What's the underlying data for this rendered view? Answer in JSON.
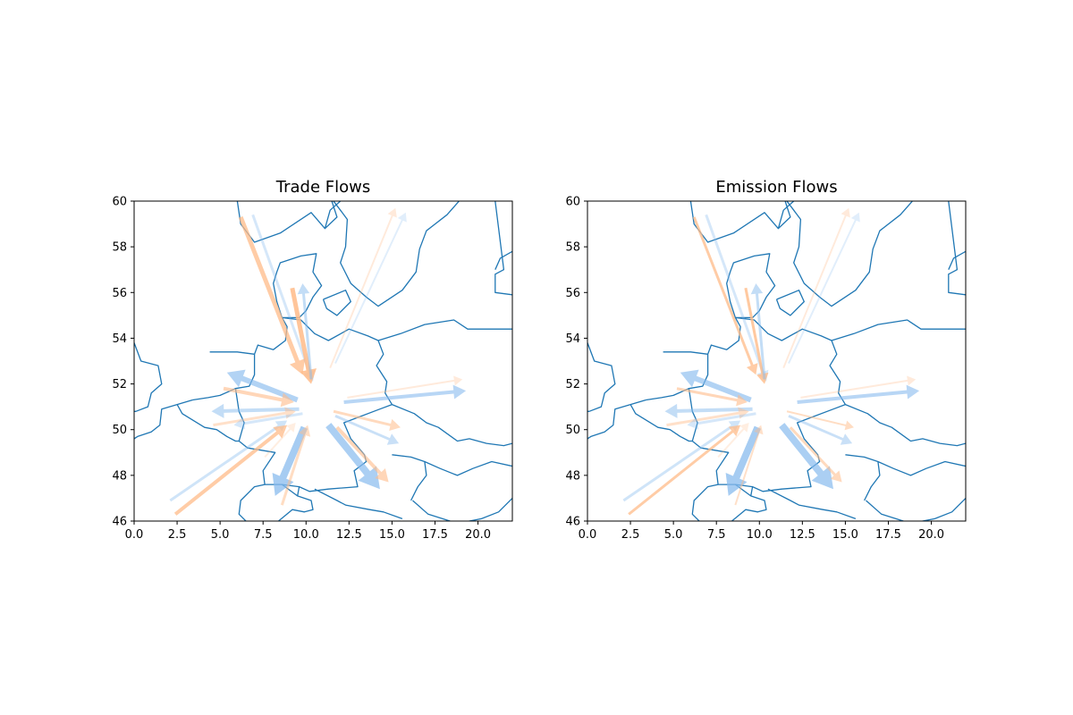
{
  "figure": {
    "colors": {
      "border": "#1f77b4",
      "export": "#ffbb88",
      "import": "#88bbee"
    },
    "panels": [
      {
        "title": "Trade Flows"
      },
      {
        "title": "Emission Flows"
      }
    ]
  },
  "chart_data": [
    {
      "type": "map-flows",
      "title": "Trade Flows",
      "xlim": [
        0,
        22
      ],
      "ylim": [
        46,
        60
      ],
      "x_ticks": [
        "0.0",
        "2.5",
        "5.0",
        "7.5",
        "10.0",
        "12.5",
        "15.0",
        "17.5",
        "20.0"
      ],
      "y_ticks": [
        "46",
        "48",
        "50",
        "52",
        "54",
        "56",
        "58",
        "60"
      ],
      "grid": false,
      "center": [
        10.5,
        51.0
      ],
      "flows": [
        {
          "from": [
            6.2,
            59.3
          ],
          "to": [
            9.8,
            52.4
          ],
          "color": "#ffbb88",
          "alpha": 0.75,
          "width": 5
        },
        {
          "from": [
            6.9,
            59.4
          ],
          "to": [
            10.4,
            52.1
          ],
          "color": "#88bbee",
          "alpha": 0.35,
          "width": 3
        },
        {
          "from": [
            9.2,
            56.2
          ],
          "to": [
            10.3,
            52.0
          ],
          "color": "#ffbb88",
          "alpha": 0.85,
          "width": 5
        },
        {
          "from": [
            10.3,
            52.2
          ],
          "to": [
            9.8,
            56.4
          ],
          "color": "#88bbee",
          "alpha": 0.5,
          "width": 3
        },
        {
          "from": [
            11.4,
            52.7
          ],
          "to": [
            15.2,
            59.7
          ],
          "color": "#ffbb88",
          "alpha": 0.3,
          "width": 2
        },
        {
          "from": [
            11.7,
            52.9
          ],
          "to": [
            15.8,
            59.5
          ],
          "color": "#88bbee",
          "alpha": 0.25,
          "width": 2
        },
        {
          "from": [
            9.5,
            51.3
          ],
          "to": [
            5.4,
            52.5
          ],
          "color": "#88bbee",
          "alpha": 0.65,
          "width": 6
        },
        {
          "from": [
            5.2,
            51.8
          ],
          "to": [
            9.3,
            51.2
          ],
          "color": "#ffbb88",
          "alpha": 0.6,
          "width": 4
        },
        {
          "from": [
            9.6,
            50.9
          ],
          "to": [
            4.5,
            50.8
          ],
          "color": "#88bbee",
          "alpha": 0.5,
          "width": 4
        },
        {
          "from": [
            4.6,
            50.2
          ],
          "to": [
            9.4,
            50.8
          ],
          "color": "#ffbb88",
          "alpha": 0.45,
          "width": 3
        },
        {
          "from": [
            9.8,
            50.7
          ],
          "to": [
            5.8,
            50.2
          ],
          "color": "#88bbee",
          "alpha": 0.35,
          "width": 3
        },
        {
          "from": [
            2.1,
            46.9
          ],
          "to": [
            8.9,
            50.4
          ],
          "color": "#88bbee",
          "alpha": 0.4,
          "width": 3
        },
        {
          "from": [
            2.4,
            46.3
          ],
          "to": [
            8.9,
            50.2
          ],
          "color": "#ffbb88",
          "alpha": 0.75,
          "width": 4
        },
        {
          "from": [
            7.6,
            48.8
          ],
          "to": [
            9.4,
            50.3
          ],
          "color": "#ffbb88",
          "alpha": 0.25,
          "width": 2
        },
        {
          "from": [
            9.9,
            50.1
          ],
          "to": [
            8.2,
            47.1
          ],
          "color": "#88bbee",
          "alpha": 0.75,
          "width": 8
        },
        {
          "from": [
            8.6,
            46.7
          ],
          "to": [
            10.1,
            50.2
          ],
          "color": "#ffbb88",
          "alpha": 0.5,
          "width": 3
        },
        {
          "from": [
            11.3,
            50.2
          ],
          "to": [
            14.3,
            47.4
          ],
          "color": "#88bbee",
          "alpha": 0.7,
          "width": 8
        },
        {
          "from": [
            11.8,
            50.1
          ],
          "to": [
            14.8,
            47.7
          ],
          "color": "#ffbb88",
          "alpha": 0.6,
          "width": 4
        },
        {
          "from": [
            11.6,
            50.8
          ],
          "to": [
            15.5,
            50.1
          ],
          "color": "#ffbb88",
          "alpha": 0.55,
          "width": 3
        },
        {
          "from": [
            11.7,
            50.6
          ],
          "to": [
            15.4,
            49.4
          ],
          "color": "#88bbee",
          "alpha": 0.45,
          "width": 3
        },
        {
          "from": [
            12.2,
            51.2
          ],
          "to": [
            19.3,
            51.7
          ],
          "color": "#88bbee",
          "alpha": 0.6,
          "width": 4
        },
        {
          "from": [
            12.4,
            51.4
          ],
          "to": [
            19.1,
            52.2
          ],
          "color": "#ffbb88",
          "alpha": 0.3,
          "width": 2
        }
      ]
    },
    {
      "type": "map-flows",
      "title": "Emission Flows",
      "xlim": [
        0,
        22
      ],
      "ylim": [
        46,
        60
      ],
      "x_ticks": [
        "0.0",
        "2.5",
        "5.0",
        "7.5",
        "10.0",
        "12.5",
        "15.0",
        "17.5",
        "20.0"
      ],
      "y_ticks": [
        "46",
        "48",
        "50",
        "52",
        "54",
        "56",
        "58",
        "60"
      ],
      "grid": false,
      "center": [
        10.5,
        51.0
      ],
      "flows": [
        {
          "from": [
            6.2,
            59.3
          ],
          "to": [
            9.8,
            52.4
          ],
          "color": "#ffbb88",
          "alpha": 0.75,
          "width": 3
        },
        {
          "from": [
            6.9,
            59.4
          ],
          "to": [
            10.4,
            52.1
          ],
          "color": "#88bbee",
          "alpha": 0.35,
          "width": 3
        },
        {
          "from": [
            9.2,
            56.2
          ],
          "to": [
            10.3,
            52.0
          ],
          "color": "#ffbb88",
          "alpha": 0.8,
          "width": 3
        },
        {
          "from": [
            10.3,
            52.2
          ],
          "to": [
            9.8,
            56.4
          ],
          "color": "#88bbee",
          "alpha": 0.5,
          "width": 3
        },
        {
          "from": [
            11.4,
            52.7
          ],
          "to": [
            15.2,
            59.7
          ],
          "color": "#ffbb88",
          "alpha": 0.3,
          "width": 2
        },
        {
          "from": [
            11.7,
            52.9
          ],
          "to": [
            15.8,
            59.5
          ],
          "color": "#88bbee",
          "alpha": 0.25,
          "width": 2
        },
        {
          "from": [
            9.5,
            51.3
          ],
          "to": [
            5.4,
            52.5
          ],
          "color": "#88bbee",
          "alpha": 0.65,
          "width": 6
        },
        {
          "from": [
            5.2,
            51.8
          ],
          "to": [
            9.3,
            51.2
          ],
          "color": "#ffbb88",
          "alpha": 0.6,
          "width": 3
        },
        {
          "from": [
            9.6,
            50.9
          ],
          "to": [
            4.5,
            50.8
          ],
          "color": "#88bbee",
          "alpha": 0.5,
          "width": 4
        },
        {
          "from": [
            4.6,
            50.2
          ],
          "to": [
            9.4,
            50.8
          ],
          "color": "#ffbb88",
          "alpha": 0.45,
          "width": 3
        },
        {
          "from": [
            9.8,
            50.7
          ],
          "to": [
            5.8,
            50.2
          ],
          "color": "#88bbee",
          "alpha": 0.35,
          "width": 3
        },
        {
          "from": [
            2.1,
            46.9
          ],
          "to": [
            8.9,
            50.4
          ],
          "color": "#88bbee",
          "alpha": 0.4,
          "width": 3
        },
        {
          "from": [
            2.4,
            46.3
          ],
          "to": [
            8.9,
            50.2
          ],
          "color": "#ffbb88",
          "alpha": 0.75,
          "width": 3
        },
        {
          "from": [
            7.6,
            48.8
          ],
          "to": [
            9.4,
            50.3
          ],
          "color": "#ffbb88",
          "alpha": 0.25,
          "width": 2
        },
        {
          "from": [
            9.9,
            50.1
          ],
          "to": [
            8.2,
            47.1
          ],
          "color": "#88bbee",
          "alpha": 0.75,
          "width": 8
        },
        {
          "from": [
            8.6,
            46.7
          ],
          "to": [
            10.1,
            50.2
          ],
          "color": "#ffbb88",
          "alpha": 0.45,
          "width": 2
        },
        {
          "from": [
            11.3,
            50.2
          ],
          "to": [
            14.3,
            47.4
          ],
          "color": "#88bbee",
          "alpha": 0.7,
          "width": 8
        },
        {
          "from": [
            11.8,
            50.1
          ],
          "to": [
            14.8,
            47.7
          ],
          "color": "#ffbb88",
          "alpha": 0.55,
          "width": 3
        },
        {
          "from": [
            11.6,
            50.8
          ],
          "to": [
            15.5,
            50.1
          ],
          "color": "#ffbb88",
          "alpha": 0.5,
          "width": 2
        },
        {
          "from": [
            11.7,
            50.6
          ],
          "to": [
            15.4,
            49.4
          ],
          "color": "#88bbee",
          "alpha": 0.45,
          "width": 3
        },
        {
          "from": [
            12.2,
            51.2
          ],
          "to": [
            19.3,
            51.7
          ],
          "color": "#88bbee",
          "alpha": 0.6,
          "width": 4
        },
        {
          "from": [
            12.4,
            51.4
          ],
          "to": [
            19.1,
            52.2
          ],
          "color": "#ffbb88",
          "alpha": 0.3,
          "width": 2
        }
      ]
    }
  ]
}
